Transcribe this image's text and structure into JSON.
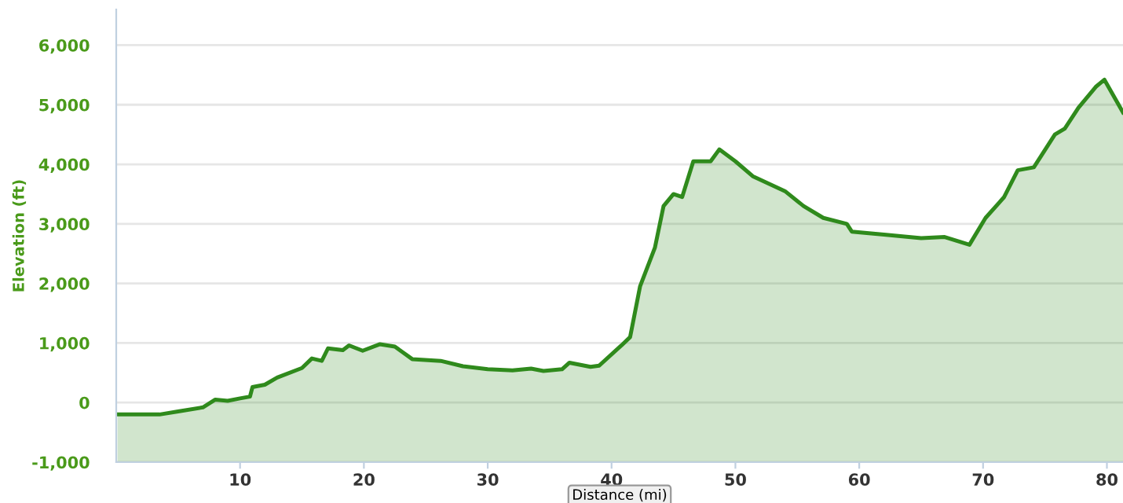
{
  "chart_data": {
    "type": "area",
    "xlabel": "Distance (mi)",
    "ylabel": "Elevation (ft)",
    "x": [
      0.1,
      3.5,
      5,
      7,
      8,
      9,
      10,
      10.8,
      11,
      12,
      13,
      15,
      15.8,
      16.6,
      17.1,
      18.3,
      18.8,
      19.9,
      21.3,
      22.5,
      23.9,
      26.2,
      28,
      30,
      32,
      33.5,
      34.5,
      36,
      36.6,
      38.3,
      39,
      40.8,
      41.5,
      42.3,
      43.5,
      44.2,
      45,
      45.7,
      46.6,
      47.3,
      48,
      48.7,
      50,
      51.4,
      54,
      55.5,
      57.1,
      59,
      59.4,
      62,
      65,
      66.9,
      68.9,
      70.2,
      71.7,
      72.8,
      74.1,
      75.8,
      76.6,
      77.7,
      79.1,
      79.8,
      81.3
    ],
    "series": [
      {
        "color": "#2f8a1c",
        "values": [
          -200,
          -200,
          -150,
          -80,
          50,
          30,
          70,
          100,
          260,
          300,
          420,
          580,
          740,
          700,
          910,
          880,
          960,
          870,
          980,
          940,
          730,
          700,
          610,
          560,
          540,
          570,
          530,
          560,
          670,
          600,
          620,
          960,
          1100,
          1950,
          2600,
          3300,
          3500,
          3450,
          4050,
          4050,
          4050,
          4250,
          4050,
          3800,
          3550,
          3300,
          3100,
          3000,
          2870,
          2820,
          2760,
          2780,
          2650,
          3100,
          3450,
          3900,
          3950,
          4500,
          4600,
          4950,
          5300,
          5420,
          4870
        ]
      }
    ],
    "xlim": [
      0,
      81.3
    ],
    "ylim": [
      -1000,
      6600
    ],
    "xticks": [
      10,
      20,
      30,
      40,
      50,
      60,
      70,
      80
    ],
    "yticks": [
      {
        "value": -1000,
        "label": "-1,000"
      },
      0,
      {
        "value": 1000,
        "label": "1,000"
      },
      {
        "value": 2000,
        "label": "2,000"
      },
      {
        "value": 3000,
        "label": "3,000"
      },
      {
        "value": 4000,
        "label": "4,000"
      },
      {
        "value": 5000,
        "label": "5,000"
      },
      {
        "value": 6000,
        "label": "6,000"
      }
    ],
    "grid": "y"
  }
}
